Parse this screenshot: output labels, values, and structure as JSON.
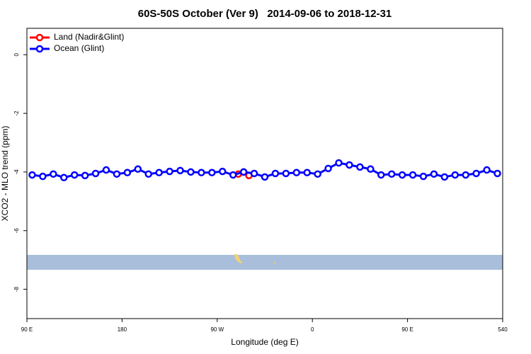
{
  "chart_data": {
    "type": "line",
    "title": "60S-50S October (Ver 9)   2014-09-06 to 2018-12-31",
    "xlabel": "Longitude (deg E)",
    "ylabel": "XCO2 - MLO trend (ppm)",
    "xlim": [
      90,
      540
    ],
    "xticks": [
      {
        "value": 90,
        "label": "90 E"
      },
      180,
      {
        "value": 270,
        "label": "90 W"
      },
      {
        "value": 360,
        "label": "0"
      },
      {
        "value": 450,
        "label": "90 E"
      },
      540
    ],
    "ylim": [
      -9,
      0.9
    ],
    "yticks": [
      0,
      -2,
      -4,
      -6,
      -8
    ],
    "legend": "top-left",
    "series": [
      {
        "name": "Land (Nadir&Glint)",
        "color": "#ff0000",
        "x": [
          290,
          295,
          300
        ],
        "values": [
          -4.07,
          -4.0,
          -4.12
        ]
      },
      {
        "name": "Ocean (Glint)",
        "color": "#0000ff",
        "x": [
          95,
          105,
          115,
          125,
          135,
          145,
          155,
          165,
          175,
          185,
          195,
          205,
          215,
          225,
          235,
          245,
          255,
          265,
          275,
          285,
          295,
          305,
          315,
          325,
          335,
          345,
          355,
          365,
          375,
          385,
          395,
          405,
          415,
          425,
          435,
          445,
          455,
          465,
          475,
          485,
          495,
          505,
          515,
          525,
          535
        ],
        "values": [
          -4.1,
          -4.15,
          -4.07,
          -4.19,
          -4.1,
          -4.12,
          -4.05,
          -3.93,
          -4.07,
          -4.02,
          -3.9,
          -4.07,
          -4.02,
          -3.98,
          -3.95,
          -4.0,
          -4.02,
          -4.02,
          -3.98,
          -4.1,
          -4.0,
          -4.05,
          -4.17,
          -4.05,
          -4.05,
          -4.02,
          -4.02,
          -4.07,
          -3.88,
          -3.69,
          -3.76,
          -3.83,
          -3.9,
          -4.1,
          -4.07,
          -4.1,
          -4.1,
          -4.15,
          -4.07,
          -4.17,
          -4.1,
          -4.1,
          -4.05,
          -3.93,
          -4.05
        ]
      }
    ]
  }
}
